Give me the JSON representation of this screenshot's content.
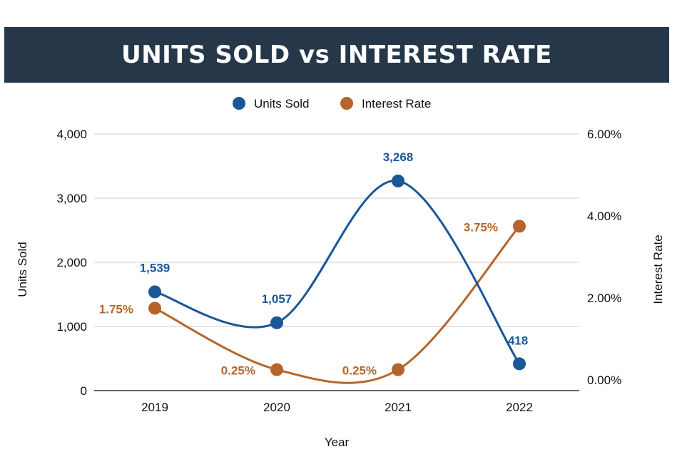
{
  "title": "UNITS SOLD vs INTEREST RATE",
  "colors": {
    "title_bg": "#26374a",
    "units": "#1a5796",
    "rate": "#b5652b",
    "grid": "#cccccc"
  },
  "chart_data": {
    "type": "line",
    "title": "UNITS SOLD vs INTEREST RATE",
    "categories": [
      "2019",
      "2020",
      "2021",
      "2022"
    ],
    "xlabel": "Year",
    "ylabel": "Units Sold",
    "y2label": "Interest Rate",
    "ylim": [
      0,
      4000
    ],
    "y2lim": [
      0,
      6
    ],
    "yticks": [
      "0",
      "1,000",
      "2,000",
      "3,000",
      "4,000"
    ],
    "y2ticks": [
      "0.00%",
      "2.00%",
      "4.00%",
      "6.00%"
    ],
    "legend_position": "top-center",
    "grid": true,
    "series": [
      {
        "name": "Units Sold",
        "axis": "left",
        "values": [
          1539,
          1057,
          3268,
          418
        ],
        "labels": [
          "1,539",
          "1,057",
          "3,268",
          "418"
        ]
      },
      {
        "name": "Interest Rate",
        "axis": "right",
        "values": [
          1.75,
          0.25,
          0.25,
          3.75
        ],
        "labels": [
          "1.75%",
          "0.25%",
          "0.25%",
          "3.75%"
        ]
      }
    ]
  }
}
